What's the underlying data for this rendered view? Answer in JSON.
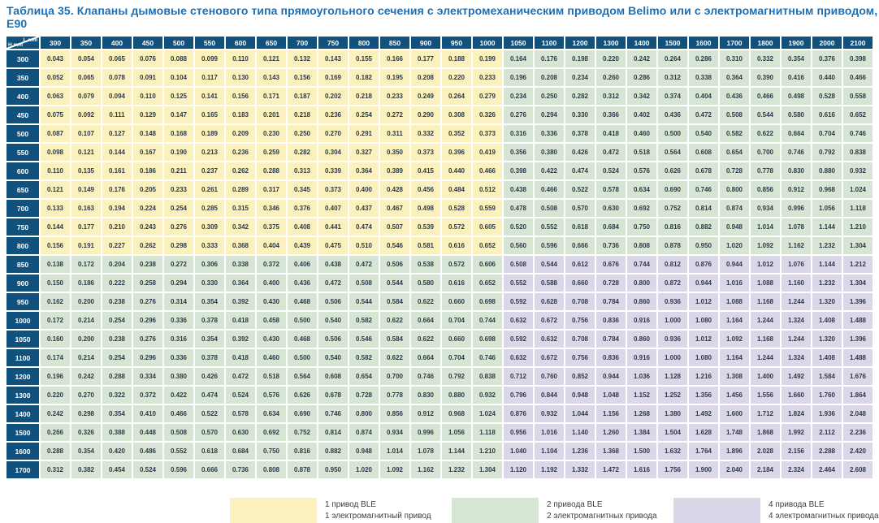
{
  "title": "Таблица 35. Клапаны дымовые стенового типа прямоугольного сечения с электромеханическим приводом Belimo или с электромагнитным приводом, E90",
  "colors": {
    "header_bg": "#10517e",
    "title_text": "#1a70b8",
    "cell_text": "#2e3a46"
  },
  "table": {
    "corner": {
      "top": "L,mm",
      "bottom": "H,mm"
    },
    "columns": [
      "300",
      "350",
      "400",
      "450",
      "500",
      "550",
      "600",
      "650",
      "700",
      "750",
      "800",
      "850",
      "900",
      "950",
      "1000",
      "1050",
      "1100",
      "1200",
      "1300",
      "1400",
      "1500",
      "1600",
      "1700",
      "1800",
      "1900",
      "2000",
      "2100"
    ],
    "rows": [
      {
        "h": "300",
        "values": [
          "0.043",
          "0.054",
          "0.065",
          "0.076",
          "0.088",
          "0.099",
          "0.110",
          "0.121",
          "0.132",
          "0.143",
          "0.155",
          "0.166",
          "0.177",
          "0.188",
          "0.199",
          "0.164",
          "0.176",
          "0.198",
          "0.220",
          "0.242",
          "0.264",
          "0.286",
          "0.310",
          "0.332",
          "0.354",
          "0.376",
          "0.398"
        ]
      },
      {
        "h": "350",
        "values": [
          "0.052",
          "0.065",
          "0.078",
          "0.091",
          "0.104",
          "0.117",
          "0.130",
          "0.143",
          "0.156",
          "0.169",
          "0.182",
          "0.195",
          "0.208",
          "0.220",
          "0.233",
          "0.196",
          "0.208",
          "0.234",
          "0.260",
          "0.286",
          "0.312",
          "0.338",
          "0.364",
          "0.390",
          "0.416",
          "0.440",
          "0.466"
        ]
      },
      {
        "h": "400",
        "values": [
          "0.063",
          "0.079",
          "0.094",
          "0.110",
          "0.125",
          "0.141",
          "0.156",
          "0.171",
          "0.187",
          "0.202",
          "0.218",
          "0.233",
          "0.249",
          "0.264",
          "0.279",
          "0.234",
          "0.250",
          "0.282",
          "0.312",
          "0.342",
          "0.374",
          "0.404",
          "0.436",
          "0.466",
          "0.498",
          "0.528",
          "0.558"
        ]
      },
      {
        "h": "450",
        "values": [
          "0.075",
          "0.092",
          "0.111",
          "0.129",
          "0.147",
          "0.165",
          "0.183",
          "0.201",
          "0.218",
          "0.236",
          "0.254",
          "0.272",
          "0.290",
          "0.308",
          "0.326",
          "0.276",
          "0.294",
          "0.330",
          "0.366",
          "0.402",
          "0.436",
          "0.472",
          "0.508",
          "0.544",
          "0.580",
          "0.616",
          "0.652"
        ]
      },
      {
        "h": "500",
        "values": [
          "0.087",
          "0.107",
          "0.127",
          "0.148",
          "0.168",
          "0.189",
          "0.209",
          "0.230",
          "0.250",
          "0.270",
          "0.291",
          "0.311",
          "0.332",
          "0.352",
          "0.373",
          "0.316",
          "0.336",
          "0.378",
          "0.418",
          "0.460",
          "0.500",
          "0.540",
          "0.582",
          "0.622",
          "0.664",
          "0.704",
          "0.746"
        ]
      },
      {
        "h": "550",
        "values": [
          "0.098",
          "0.121",
          "0.144",
          "0.167",
          "0.190",
          "0.213",
          "0.236",
          "0.259",
          "0.282",
          "0.304",
          "0.327",
          "0.350",
          "0.373",
          "0.396",
          "0.419",
          "0.356",
          "0.380",
          "0.426",
          "0.472",
          "0.518",
          "0.564",
          "0.608",
          "0.654",
          "0.700",
          "0.746",
          "0.792",
          "0.838"
        ]
      },
      {
        "h": "600",
        "values": [
          "0.110",
          "0.135",
          "0.161",
          "0.186",
          "0.211",
          "0.237",
          "0.262",
          "0.288",
          "0.313",
          "0.339",
          "0.364",
          "0.389",
          "0.415",
          "0.440",
          "0.466",
          "0.398",
          "0.422",
          "0.474",
          "0.524",
          "0.576",
          "0.626",
          "0.678",
          "0.728",
          "0.778",
          "0.830",
          "0.880",
          "0.932"
        ]
      },
      {
        "h": "650",
        "values": [
          "0.121",
          "0.149",
          "0.176",
          "0.205",
          "0.233",
          "0.261",
          "0.289",
          "0.317",
          "0.345",
          "0.373",
          "0.400",
          "0.428",
          "0.456",
          "0.484",
          "0.512",
          "0.438",
          "0.466",
          "0.522",
          "0.578",
          "0.634",
          "0.690",
          "0.746",
          "0.800",
          "0.856",
          "0.912",
          "0.968",
          "1.024"
        ]
      },
      {
        "h": "700",
        "values": [
          "0.133",
          "0.163",
          "0.194",
          "0.224",
          "0.254",
          "0.285",
          "0.315",
          "0.346",
          "0.376",
          "0.407",
          "0.437",
          "0.467",
          "0.498",
          "0.528",
          "0.559",
          "0.478",
          "0.508",
          "0.570",
          "0.630",
          "0.692",
          "0.752",
          "0.814",
          "0.874",
          "0.934",
          "0.996",
          "1.056",
          "1.118"
        ]
      },
      {
        "h": "750",
        "values": [
          "0.144",
          "0.177",
          "0.210",
          "0.243",
          "0.276",
          "0.309",
          "0.342",
          "0.375",
          "0.408",
          "0.441",
          "0.474",
          "0.507",
          "0.539",
          "0.572",
          "0.605",
          "0.520",
          "0.552",
          "0.618",
          "0.684",
          "0.750",
          "0.816",
          "0.882",
          "0.948",
          "1.014",
          "1.078",
          "1.144",
          "1.210"
        ]
      },
      {
        "h": "800",
        "values": [
          "0.156",
          "0.191",
          "0.227",
          "0.262",
          "0.298",
          "0.333",
          "0.368",
          "0.404",
          "0.439",
          "0.475",
          "0.510",
          "0.546",
          "0.581",
          "0.616",
          "0.652",
          "0.560",
          "0.596",
          "0.666",
          "0.736",
          "0.808",
          "0.878",
          "0.950",
          "1.020",
          "1.092",
          "1.162",
          "1.232",
          "1.304"
        ]
      },
      {
        "h": "850",
        "values": [
          "0.138",
          "0.172",
          "0.204",
          "0.238",
          "0.272",
          "0.306",
          "0.338",
          "0.372",
          "0.406",
          "0.438",
          "0.472",
          "0.506",
          "0.538",
          "0.572",
          "0.606",
          "0.508",
          "0.544",
          "0.612",
          "0.676",
          "0.744",
          "0.812",
          "0.876",
          "0.944",
          "1.012",
          "1.076",
          "1.144",
          "1.212"
        ]
      },
      {
        "h": "900",
        "values": [
          "0.150",
          "0.186",
          "0.222",
          "0.258",
          "0.294",
          "0.330",
          "0.364",
          "0.400",
          "0.436",
          "0.472",
          "0.508",
          "0.544",
          "0.580",
          "0.616",
          "0.652",
          "0.552",
          "0.588",
          "0.660",
          "0.728",
          "0.800",
          "0.872",
          "0.944",
          "1.016",
          "1.088",
          "1.160",
          "1.232",
          "1.304"
        ]
      },
      {
        "h": "950",
        "values": [
          "0.162",
          "0.200",
          "0.238",
          "0.276",
          "0.314",
          "0.354",
          "0.392",
          "0.430",
          "0.468",
          "0.506",
          "0.544",
          "0.584",
          "0.622",
          "0.660",
          "0.698",
          "0.592",
          "0.628",
          "0.708",
          "0.784",
          "0.860",
          "0.936",
          "1.012",
          "1.088",
          "1.168",
          "1.244",
          "1.320",
          "1.396"
        ]
      },
      {
        "h": "1000",
        "values": [
          "0.172",
          "0.214",
          "0.254",
          "0.296",
          "0.336",
          "0.378",
          "0.418",
          "0.458",
          "0.500",
          "0.540",
          "0.582",
          "0.622",
          "0.664",
          "0.704",
          "0.744",
          "0.632",
          "0.672",
          "0.756",
          "0.836",
          "0.916",
          "1.000",
          "1.080",
          "1.164",
          "1.244",
          "1.324",
          "1.408",
          "1.488"
        ]
      },
      {
        "h": "1050",
        "values": [
          "0.160",
          "0.200",
          "0.238",
          "0.276",
          "0.316",
          "0.354",
          "0.392",
          "0.430",
          "0.468",
          "0.506",
          "0.546",
          "0.584",
          "0.622",
          "0.660",
          "0.698",
          "0.592",
          "0.632",
          "0.708",
          "0.784",
          "0.860",
          "0.936",
          "1.012",
          "1.092",
          "1.168",
          "1.244",
          "1.320",
          "1.396"
        ]
      },
      {
        "h": "1100",
        "values": [
          "0.174",
          "0.214",
          "0.254",
          "0.296",
          "0.336",
          "0.378",
          "0.418",
          "0.460",
          "0.500",
          "0.540",
          "0.582",
          "0.622",
          "0.664",
          "0.704",
          "0.746",
          "0.632",
          "0.672",
          "0.756",
          "0.836",
          "0.916",
          "1.000",
          "1.080",
          "1.164",
          "1.244",
          "1.324",
          "1.408",
          "1.488"
        ]
      },
      {
        "h": "1200",
        "values": [
          "0.196",
          "0.242",
          "0.288",
          "0.334",
          "0.380",
          "0.426",
          "0.472",
          "0.518",
          "0.564",
          "0.608",
          "0.654",
          "0.700",
          "0.746",
          "0.792",
          "0.838",
          "0.712",
          "0.760",
          "0.852",
          "0.944",
          "1.036",
          "1.128",
          "1.216",
          "1.308",
          "1.400",
          "1.492",
          "1.584",
          "1.676"
        ]
      },
      {
        "h": "1300",
        "values": [
          "0.220",
          "0.270",
          "0.322",
          "0.372",
          "0.422",
          "0.474",
          "0.524",
          "0.576",
          "0.626",
          "0.678",
          "0.728",
          "0.778",
          "0.830",
          "0.880",
          "0.932",
          "0.796",
          "0.844",
          "0.948",
          "1.048",
          "1.152",
          "1.252",
          "1.356",
          "1.456",
          "1.556",
          "1.660",
          "1.760",
          "1.864"
        ]
      },
      {
        "h": "1400",
        "values": [
          "0.242",
          "0.298",
          "0.354",
          "0.410",
          "0.466",
          "0.522",
          "0.578",
          "0.634",
          "0.690",
          "0.746",
          "0.800",
          "0.856",
          "0.912",
          "0.968",
          "1.024",
          "0.876",
          "0.932",
          "1.044",
          "1.156",
          "1.268",
          "1.380",
          "1.492",
          "1.600",
          "1.712",
          "1.824",
          "1.936",
          "2.048"
        ]
      },
      {
        "h": "1500",
        "values": [
          "0.266",
          "0.326",
          "0.388",
          "0.448",
          "0.508",
          "0.570",
          "0.630",
          "0.692",
          "0.752",
          "0.814",
          "0.874",
          "0.934",
          "0.996",
          "1.056",
          "1.118",
          "0.956",
          "1.016",
          "1.140",
          "1.260",
          "1.384",
          "1.504",
          "1.628",
          "1.748",
          "1.868",
          "1.992",
          "2.112",
          "2.236"
        ]
      },
      {
        "h": "1600",
        "values": [
          "0.288",
          "0.354",
          "0.420",
          "0.486",
          "0.552",
          "0.618",
          "0.684",
          "0.750",
          "0.816",
          "0.882",
          "0.948",
          "1.014",
          "1.078",
          "1.144",
          "1.210",
          "1.040",
          "1.104",
          "1.236",
          "1.368",
          "1.500",
          "1.632",
          "1.764",
          "1.896",
          "2.028",
          "2.156",
          "2.288",
          "2.420"
        ]
      },
      {
        "h": "1700",
        "values": [
          "0.312",
          "0.382",
          "0.454",
          "0.524",
          "0.596",
          "0.666",
          "0.736",
          "0.808",
          "0.878",
          "0.950",
          "1.020",
          "1.092",
          "1.162",
          "1.232",
          "1.304",
          "1.120",
          "1.192",
          "1.332",
          "1.472",
          "1.616",
          "1.756",
          "1.900",
          "2.040",
          "2.184",
          "2.324",
          "2.464",
          "2.608"
        ]
      }
    ]
  },
  "zones": {
    "yellow": {
      "color": "#fbf1bd",
      "h_max": 800,
      "l_max": 1000
    },
    "green": {
      "color": "#d7e5d4"
    },
    "purple": {
      "color": "#dbd6e8",
      "h_min": 850,
      "l_min": 1050
    }
  },
  "legend": [
    {
      "color": "#fbf1bd",
      "line1": "1 привод BLE",
      "line2": "1 электромагнитный привод"
    },
    {
      "color": "#d7e5d4",
      "line1": "2 привода BLE",
      "line2": "2 электромагнитных привода"
    },
    {
      "color": "#dbd6e8",
      "line1": "4 привода BLE",
      "line2": "4 электромагнитных привода"
    }
  ]
}
